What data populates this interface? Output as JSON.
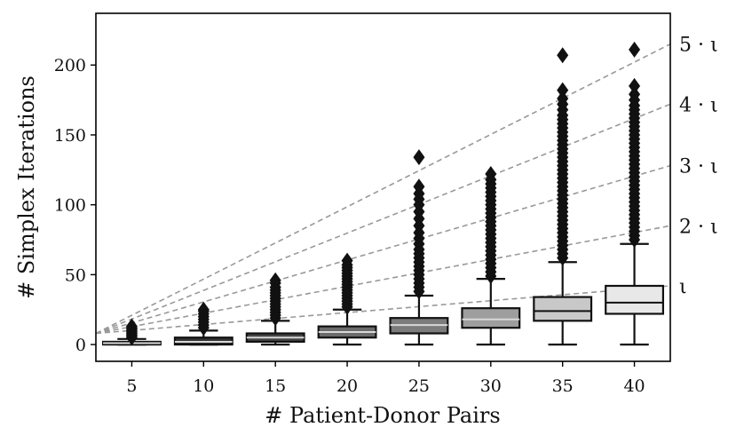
{
  "chart_data": {
    "type": "box",
    "xlabel": "# Patient-Donor Pairs",
    "ylabel": "# Simplex Iterations",
    "categories": [
      "5",
      "10",
      "15",
      "20",
      "25",
      "30",
      "35",
      "40"
    ],
    "ylim": [
      -12,
      237
    ],
    "yticks": [
      0,
      50,
      100,
      150,
      200
    ],
    "grid": false,
    "legend": "none",
    "boxes": [
      {
        "label": "5",
        "color": "#2a2a2a",
        "whislo": 0,
        "q1": 0,
        "med": 1,
        "q3": 2,
        "whishi": 4,
        "fliers": [
          5,
          6,
          7,
          8,
          9,
          10,
          11,
          12,
          13
        ]
      },
      {
        "label": "10",
        "color": "#333333",
        "whislo": 0,
        "q1": 0,
        "med": 2,
        "q3": 5,
        "whishi": 10,
        "fliers": [
          12,
          14,
          16,
          18,
          20,
          22,
          24,
          25
        ]
      },
      {
        "label": "15",
        "color": "#444444",
        "whislo": 0,
        "q1": 2,
        "med": 5,
        "q3": 8,
        "whishi": 17,
        "fliers": [
          19,
          21,
          23,
          25,
          27,
          29,
          31,
          33,
          35,
          37,
          39,
          41,
          44,
          46
        ]
      },
      {
        "label": "20",
        "color": "#6a6a6a",
        "whislo": 0,
        "q1": 5,
        "med": 9,
        "q3": 13,
        "whishi": 25,
        "fliers": [
          27,
          29,
          31,
          33,
          35,
          37,
          39,
          41,
          43,
          45,
          47,
          49,
          51,
          53,
          55,
          57,
          60
        ]
      },
      {
        "label": "25",
        "color": "#7c7c7c",
        "whislo": 0,
        "q1": 8,
        "med": 14,
        "q3": 19,
        "whishi": 35,
        "fliers": [
          38,
          41,
          44,
          47,
          50,
          53,
          56,
          59,
          62,
          65,
          68,
          72,
          76,
          80,
          85,
          90,
          95,
          100,
          104,
          108,
          113,
          134
        ]
      },
      {
        "label": "30",
        "color": "#9e9e9e",
        "whislo": 0,
        "q1": 12,
        "med": 18,
        "q3": 26,
        "whishi": 47,
        "fliers": [
          49,
          52,
          55,
          58,
          61,
          64,
          67,
          70,
          73,
          76,
          79,
          82,
          85,
          88,
          91,
          94,
          97,
          100,
          103,
          106,
          109,
          112,
          115,
          118,
          122
        ]
      },
      {
        "label": "35",
        "color": "#c8c8c8",
        "whislo": 0,
        "q1": 17,
        "med": 24,
        "q3": 34,
        "whishi": 59,
        "fliers": [
          62,
          65,
          68,
          71,
          74,
          77,
          80,
          83,
          86,
          89,
          92,
          95,
          98,
          101,
          104,
          107,
          110,
          113,
          116,
          119,
          122,
          125,
          128,
          131,
          134,
          137,
          140,
          143,
          146,
          149,
          152,
          155,
          158,
          161,
          164,
          168,
          172,
          176,
          182,
          207
        ]
      },
      {
        "label": "40",
        "color": "#e8e8e8",
        "whislo": 0,
        "q1": 22,
        "med": 30,
        "q3": 42,
        "whishi": 72,
        "fliers": [
          75,
          78,
          81,
          84,
          87,
          90,
          93,
          96,
          99,
          102,
          105,
          108,
          111,
          114,
          117,
          120,
          123,
          126,
          129,
          132,
          135,
          138,
          141,
          144,
          147,
          150,
          153,
          156,
          159,
          162,
          165,
          168,
          171,
          175,
          179,
          185,
          211
        ]
      }
    ],
    "reference_lines": {
      "color": "#999999",
      "style": "dashed",
      "lines": [
        {
          "label": "ι",
          "start": 8,
          "end": 42
        },
        {
          "label": "2 · ι",
          "start": 8,
          "end": 85
        },
        {
          "label": "3 · ι",
          "start": 8,
          "end": 128
        },
        {
          "label": "4 · ι",
          "start": 8,
          "end": 172
        },
        {
          "label": "5 · ι",
          "start": 8,
          "end": 215
        }
      ]
    }
  }
}
